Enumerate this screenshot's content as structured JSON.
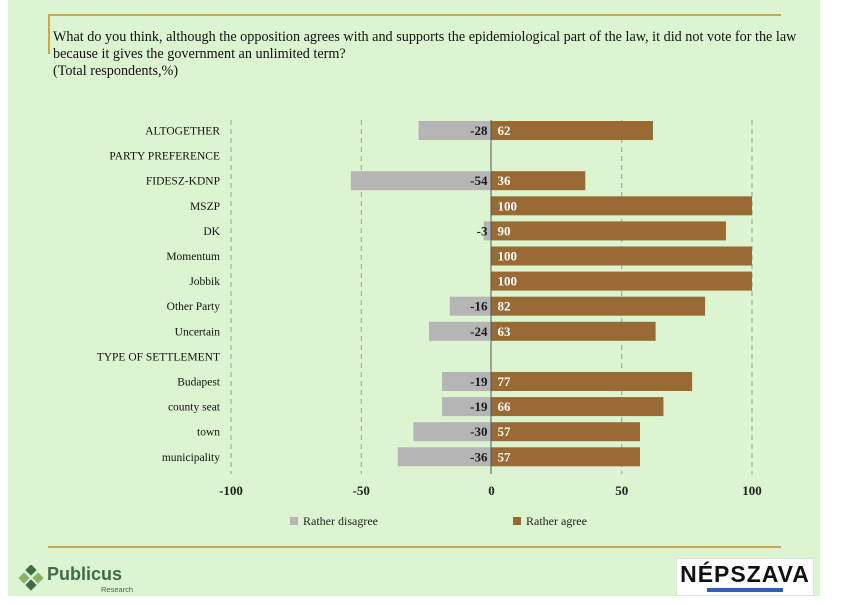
{
  "question": {
    "line1": "What do you think, although the opposition agrees with and supports the epidemiological part of the law, it did not vote for the law",
    "line2": "because it gives the government an unlimited term?",
    "line3": "(Total respondents,%)"
  },
  "colors": {
    "background": "#dcf5d0",
    "disagree": "#b5b5b5",
    "agree": "#9a6a35",
    "frame": "#c9a94f",
    "grid": "#9c9c9c"
  },
  "chart_data": {
    "type": "bar",
    "orientation": "horizontal",
    "stacked": "diverging",
    "categories": [
      "ALTOGETHER",
      "PARTY PREFERENCE",
      "FIDESZ-KDNP",
      "MSZP",
      "DK",
      "Momentum",
      "Jobbik",
      "Other Party",
      "Uncertain",
      "TYPE OF SETTLEMENT",
      "Budapest",
      "county seat",
      "town",
      "municipality"
    ],
    "series": [
      {
        "name": "Rather disagree",
        "values": [
          -28,
          null,
          -54,
          null,
          -3,
          null,
          null,
          -16,
          -24,
          null,
          -19,
          -19,
          -30,
          -36
        ]
      },
      {
        "name": "Rather agree",
        "values": [
          62,
          null,
          36,
          100,
          90,
          100,
          100,
          82,
          63,
          null,
          77,
          66,
          57,
          57
        ]
      }
    ],
    "xlim": [
      -100,
      100
    ],
    "xticks": [
      "-100",
      "-50",
      "0",
      "50",
      "100"
    ],
    "grid": true,
    "legend_position": "bottom"
  },
  "logos": {
    "publicus_name": "Publicus",
    "publicus_sub": "Research",
    "nepszava": "NÉPSZAVA"
  }
}
